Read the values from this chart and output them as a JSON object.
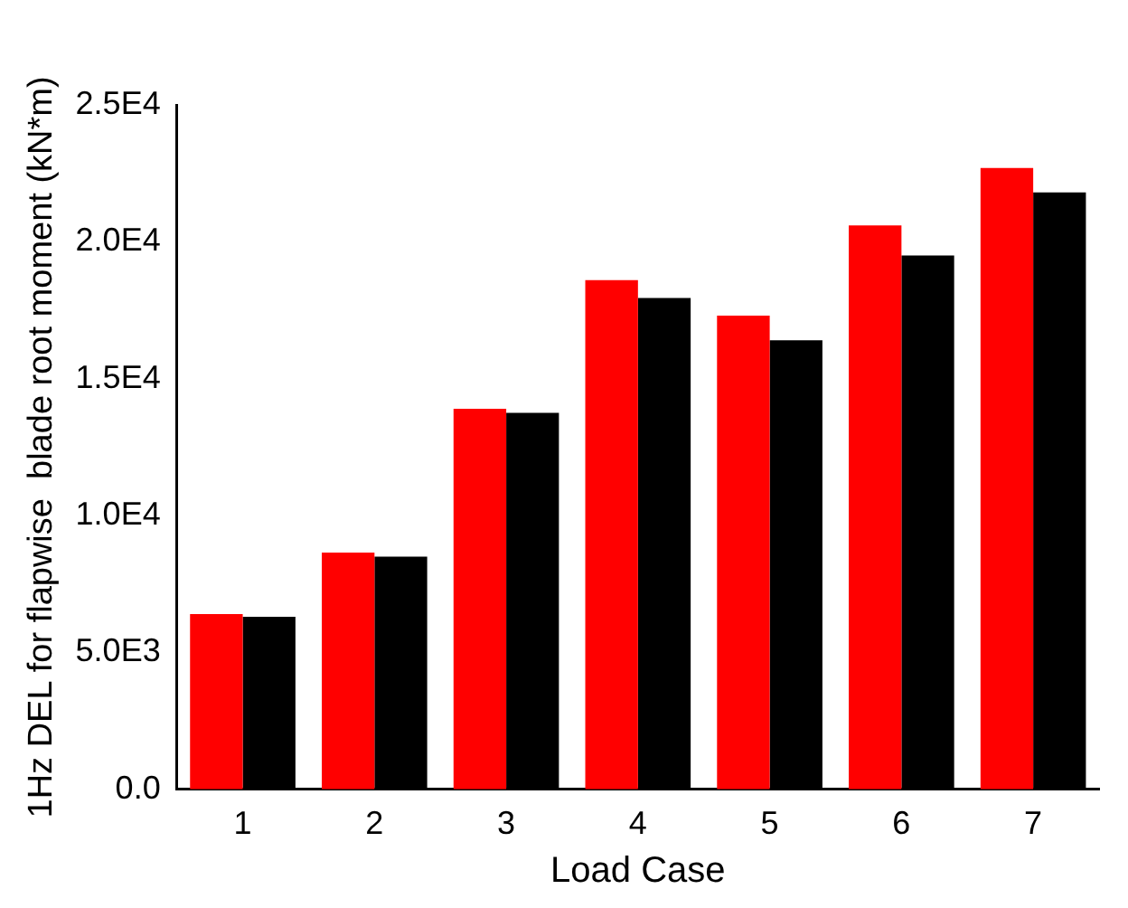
{
  "chart_data": {
    "type": "bar",
    "xlabel": "Load Case",
    "ylabel": "1Hz DEL for flapwise  blade root moment (kN*m)",
    "categories": [
      "1",
      "2",
      "3",
      "4",
      "5",
      "6",
      "7"
    ],
    "series": [
      {
        "color": "#ff0000",
        "values": [
          6400,
          8650,
          13900,
          18600,
          17300,
          20600,
          22700
        ]
      },
      {
        "color": "#000000",
        "values": [
          6300,
          8500,
          13750,
          17950,
          16400,
          19500,
          21800
        ]
      }
    ],
    "ylim": [
      0,
      25000
    ],
    "yticks": [
      {
        "value": 0,
        "label": "0.0"
      },
      {
        "value": 5000,
        "label": "5.0E3"
      },
      {
        "value": 10000,
        "label": "1.0E4"
      },
      {
        "value": 15000,
        "label": "1.5E4"
      },
      {
        "value": 20000,
        "label": "2.0E4"
      },
      {
        "value": 25000,
        "label": "2.5E4"
      }
    ],
    "grid": false,
    "legend": false
  }
}
